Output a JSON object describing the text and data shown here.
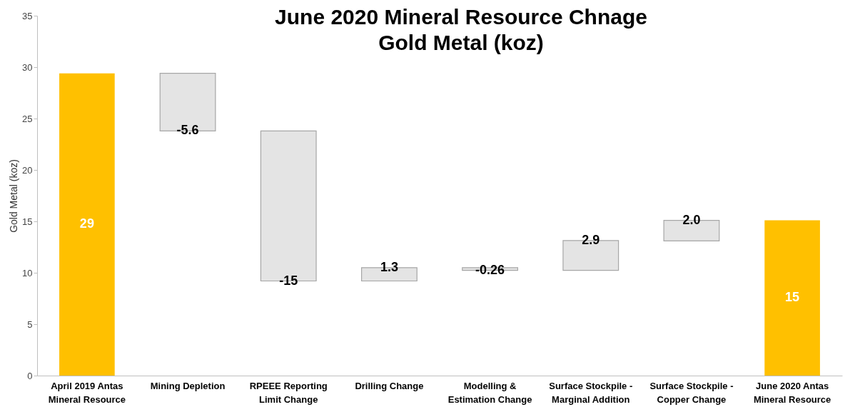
{
  "chart_data": {
    "type": "bar",
    "title": "June 2020 Mineral Resource Chnage",
    "subtitle": "Gold Metal (koz)",
    "ylabel": "Gold Metal (koz)",
    "categories": [
      "April 2019 Antas Mineral Resource",
      "Mining Depletion",
      "RPEEE Reporting Limit Change",
      "Drilling Change",
      "Modelling & Estimation Change",
      "Surface Stockpile - Marginal Addition",
      "Surface Stockpile - Copper Change",
      "June 2020 Antas Mineral Resource"
    ],
    "values": [
      29.4,
      -5.6,
      -14.6,
      1.3,
      -0.26,
      2.9,
      2.0,
      15.1
    ],
    "base": [
      0,
      29.4,
      23.8,
      9.2,
      10.5,
      10.24,
      13.1,
      0
    ],
    "value_labels": [
      "29",
      "-5.6",
      "-15",
      "1.3",
      "-0.26",
      "2.9",
      "2.0",
      "15"
    ],
    "colors": [
      "#ffc000",
      "#e4e4e4",
      "#e4e4e4",
      "#e4e4e4",
      "#e4e4e4",
      "#e4e4e4",
      "#e4e4e4",
      "#ffc000"
    ],
    "ylim": [
      0,
      35
    ],
    "yticks": [
      0,
      5,
      10,
      15,
      20,
      25,
      30,
      35
    ],
    "grid": false,
    "legend": false
  }
}
